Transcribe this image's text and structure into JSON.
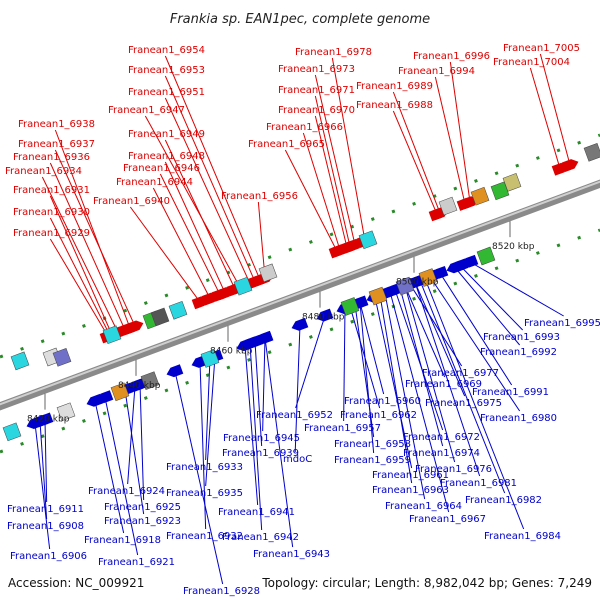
{
  "title": "Frankia sp. EAN1pec, complete genome",
  "footer": {
    "accession": "Accession: NC_009921",
    "summary": "Topology: circular; Length: 8,982,042 bp; Genes: 7,249"
  },
  "colors": {
    "forward": "#dd0000",
    "reverse": "#0000cc"
  },
  "axis_ticks": [
    "8420 kbp",
    "8440 kbp",
    "8460 kbp",
    "8480 kbp",
    "8500 kbp",
    "8520 kbp"
  ],
  "forward_genes": [
    "Franean1_6954",
    "Franean1_6953",
    "Franean1_6951",
    "Franean1_6947",
    "Franean1_6938",
    "Franean1_6949",
    "Franean1_6937",
    "Franean1_6948",
    "Franean1_6936",
    "Franean1_6946",
    "Franean1_6934",
    "Franean1_6944",
    "Franean1_6931",
    "Franean1_6940",
    "Franean1_6930",
    "Franean1_6929",
    "Franean1_6956",
    "Franean1_6978",
    "Franean1_6973",
    "Franean1_6971",
    "Franean1_6970",
    "Franean1_6966",
    "Franean1_6965",
    "Franean1_6996",
    "Franean1_6994",
    "Franean1_6989",
    "Franean1_6988",
    "Franean1_7005",
    "Franean1_7004"
  ],
  "reverse_genes": [
    "Franean1_6995",
    "Franean1_6993",
    "Franean1_6992",
    "Franean1_6991",
    "Franean1_6977",
    "Franean1_6969",
    "Franean1_6975",
    "Franean1_6980",
    "Franean1_6960",
    "Franean1_6962",
    "Franean1_6972",
    "Franean1_6974",
    "Franean1_6976",
    "Franean1_6981",
    "Franean1_6982",
    "Franean1_6984",
    "Franean1_6967",
    "Franean1_6964",
    "Franean1_6963",
    "Franean1_6961",
    "Franean1_6959",
    "Franean1_6958",
    "Franean1_6957",
    "Franean1_6952",
    "mdoC",
    "Franean1_6945",
    "Franean1_6939",
    "Franean1_6933",
    "Franean1_6935",
    "Franean1_6941",
    "Franean1_6942",
    "Franean1_6943",
    "Franean1_6932",
    "Franean1_6928",
    "Franean1_6924",
    "Franean1_6925",
    "Franean1_6911",
    "Franean1_6923",
    "Franean1_6908",
    "Franean1_6918",
    "Franean1_6906",
    "Franean1_6921"
  ]
}
